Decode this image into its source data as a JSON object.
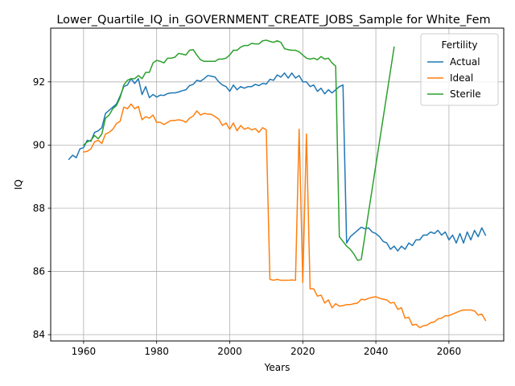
{
  "chart_data": {
    "type": "line",
    "title": "Lower_Quartile_IQ_in_GOVERNMENT_CREATE_JOBS_Sample for White_Fem",
    "xlabel": "Years",
    "ylabel": "IQ",
    "xlim": [
      1951,
      2075
    ],
    "ylim": [
      83.8,
      93.7
    ],
    "xticks": [
      1960,
      1980,
      2000,
      2020,
      2040,
      2060
    ],
    "yticks": [
      84,
      86,
      88,
      90,
      92
    ],
    "grid": true,
    "legend": {
      "title": "Fertility",
      "position": "top-right"
    },
    "series": [
      {
        "name": "Actual",
        "color": "#1f77b4",
        "x": [
          1956,
          1957,
          1958,
          1959,
          1960,
          1961,
          1962,
          1963,
          1964,
          1965,
          1966,
          1967,
          1968,
          1969,
          1970,
          1971,
          1972,
          1973,
          1974,
          1975,
          1976,
          1977,
          1978,
          1979,
          1980,
          1981,
          1982,
          1983,
          1984,
          1985,
          1986,
          1987,
          1988,
          1989,
          1990,
          1991,
          1992,
          1993,
          1994,
          1995,
          1996,
          1997,
          1998,
          1999,
          2000,
          2001,
          2002,
          2003,
          2004,
          2005,
          2006,
          2007,
          2008,
          2009,
          2010,
          2011,
          2012,
          2013,
          2014,
          2015,
          2016,
          2017,
          2018,
          2019,
          2020,
          2021,
          2022,
          2023,
          2024,
          2025,
          2026,
          2027,
          2028,
          2029,
          2030,
          2031,
          2032,
          2033,
          2034,
          2035,
          2036,
          2037,
          2038,
          2039,
          2040,
          2041,
          2042,
          2043,
          2044,
          2045,
          2046,
          2047,
          2048,
          2049,
          2050,
          2051,
          2052,
          2053,
          2054,
          2055,
          2056,
          2057,
          2058,
          2059,
          2060,
          2061,
          2062,
          2063,
          2064,
          2065,
          2066,
          2067,
          2068,
          2069,
          2070
        ],
        "y": [
          89.55,
          89.68,
          89.6,
          89.88,
          89.92,
          90.15,
          90.12,
          90.4,
          90.45,
          90.55,
          91.0,
          91.1,
          91.2,
          91.3,
          91.55,
          91.85,
          91.9,
          92.1,
          91.95,
          92.1,
          91.6,
          91.85,
          91.5,
          91.6,
          91.52,
          91.58,
          91.57,
          91.63,
          91.65,
          91.65,
          91.68,
          91.72,
          91.75,
          91.88,
          91.92,
          92.05,
          92.02,
          92.1,
          92.2,
          92.18,
          92.15,
          92.0,
          91.9,
          91.85,
          91.7,
          91.9,
          91.75,
          91.85,
          91.8,
          91.85,
          91.85,
          91.92,
          91.88,
          91.95,
          91.93,
          92.08,
          92.05,
          92.22,
          92.15,
          92.28,
          92.12,
          92.28,
          92.12,
          92.2,
          92.0,
          92.0,
          91.85,
          91.9,
          91.7,
          91.8,
          91.62,
          91.75,
          91.65,
          91.75,
          91.85,
          91.9,
          86.9,
          87.1,
          87.2,
          87.3,
          87.4,
          87.35,
          87.38,
          87.25,
          87.2,
          87.1,
          86.95,
          86.9,
          86.7,
          86.8,
          86.65,
          86.8,
          86.7,
          86.9,
          86.82,
          87.0,
          87.0,
          87.15,
          87.15,
          87.25,
          87.2,
          87.3,
          87.15,
          87.25,
          87.0,
          87.15,
          86.9,
          87.2,
          86.9,
          87.25,
          87.0,
          87.3,
          87.1,
          87.38,
          87.15
        ]
      },
      {
        "name": "Ideal",
        "color": "#ff7f0e",
        "x": [
          1960,
          1961,
          1962,
          1963,
          1964,
          1965,
          1966,
          1967,
          1968,
          1969,
          1970,
          1971,
          1972,
          1973,
          1974,
          1975,
          1976,
          1977,
          1978,
          1979,
          1980,
          1981,
          1982,
          1983,
          1984,
          1985,
          1986,
          1987,
          1988,
          1989,
          1990,
          1991,
          1992,
          1993,
          1994,
          1995,
          1996,
          1997,
          1998,
          1999,
          2000,
          2001,
          2002,
          2003,
          2004,
          2005,
          2006,
          2007,
          2008,
          2009,
          2010,
          2011,
          2012,
          2013,
          2014,
          2015,
          2016,
          2017,
          2018,
          2019,
          2020,
          2021,
          2022,
          2023,
          2024,
          2025,
          2026,
          2027,
          2028,
          2029,
          2030,
          2031,
          2032,
          2033,
          2034,
          2035,
          2036,
          2037,
          2038,
          2039,
          2040,
          2041,
          2042,
          2043,
          2044,
          2045,
          2046,
          2047,
          2048,
          2049,
          2050,
          2051,
          2052,
          2053,
          2054,
          2055,
          2056,
          2057,
          2058,
          2059,
          2060,
          2061,
          2062,
          2063,
          2064,
          2065,
          2066,
          2067,
          2068,
          2069,
          2070
        ],
        "y": [
          89.78,
          89.8,
          89.88,
          90.1,
          90.15,
          90.05,
          90.35,
          90.4,
          90.5,
          90.68,
          90.75,
          91.2,
          91.15,
          91.3,
          91.15,
          91.22,
          90.8,
          90.9,
          90.85,
          90.95,
          90.72,
          90.72,
          90.65,
          90.72,
          90.78,
          90.78,
          90.8,
          90.78,
          90.72,
          90.85,
          90.92,
          91.08,
          90.95,
          91.0,
          90.98,
          90.97,
          90.9,
          90.82,
          90.62,
          90.7,
          90.5,
          90.7,
          90.45,
          90.62,
          90.5,
          90.55,
          90.48,
          90.52,
          90.4,
          90.55,
          90.48,
          85.75,
          85.72,
          85.75,
          85.72,
          85.72,
          85.72,
          85.73,
          85.72,
          90.5,
          85.65,
          90.35,
          85.45,
          85.45,
          85.22,
          85.25,
          85.0,
          85.1,
          84.85,
          84.98,
          84.9,
          84.92,
          84.95,
          84.95,
          84.98,
          85.0,
          85.12,
          85.1,
          85.15,
          85.18,
          85.2,
          85.15,
          85.12,
          85.1,
          85.0,
          85.02,
          84.8,
          84.85,
          84.52,
          84.55,
          84.3,
          84.33,
          84.22,
          84.28,
          84.3,
          84.38,
          84.4,
          84.5,
          84.52,
          84.6,
          84.6,
          84.65,
          84.7,
          84.75,
          84.78,
          84.78,
          84.78,
          84.75,
          84.62,
          84.65,
          84.45
        ]
      },
      {
        "name": "Sterile",
        "color": "#2ca02c",
        "x": [
          1960,
          1961,
          1962,
          1963,
          1964,
          1965,
          1966,
          1967,
          1968,
          1969,
          1970,
          1971,
          1972,
          1973,
          1974,
          1975,
          1976,
          1977,
          1978,
          1979,
          1980,
          1981,
          1982,
          1983,
          1984,
          1985,
          1986,
          1987,
          1988,
          1989,
          1990,
          1991,
          1992,
          1993,
          1994,
          1995,
          1996,
          1997,
          1998,
          1999,
          2000,
          2001,
          2002,
          2003,
          2004,
          2005,
          2006,
          2007,
          2008,
          2009,
          2010,
          2011,
          2012,
          2013,
          2014,
          2015,
          2016,
          2017,
          2018,
          2019,
          2020,
          2021,
          2022,
          2023,
          2024,
          2025,
          2026,
          2027,
          2028,
          2029,
          2030,
          2031,
          2032,
          2033,
          2034,
          2035,
          2036,
          2045
        ],
        "y": [
          90.0,
          90.1,
          90.15,
          90.3,
          90.2,
          90.35,
          90.85,
          90.95,
          91.15,
          91.25,
          91.5,
          91.9,
          92.05,
          92.1,
          92.1,
          92.2,
          92.1,
          92.3,
          92.3,
          92.6,
          92.68,
          92.65,
          92.6,
          92.75,
          92.75,
          92.78,
          92.9,
          92.88,
          92.85,
          93.0,
          93.02,
          92.85,
          92.7,
          92.65,
          92.65,
          92.65,
          92.65,
          92.72,
          92.72,
          92.75,
          92.85,
          93.0,
          93.0,
          93.1,
          93.15,
          93.15,
          93.22,
          93.2,
          93.2,
          93.3,
          93.32,
          93.28,
          93.25,
          93.3,
          93.25,
          93.05,
          93.02,
          93.0,
          93.0,
          92.95,
          92.85,
          92.75,
          92.72,
          92.75,
          92.7,
          92.8,
          92.72,
          92.75,
          92.6,
          92.5,
          87.1,
          86.95,
          86.8,
          86.7,
          86.55,
          86.35,
          86.38,
          93.1
        ]
      }
    ]
  }
}
